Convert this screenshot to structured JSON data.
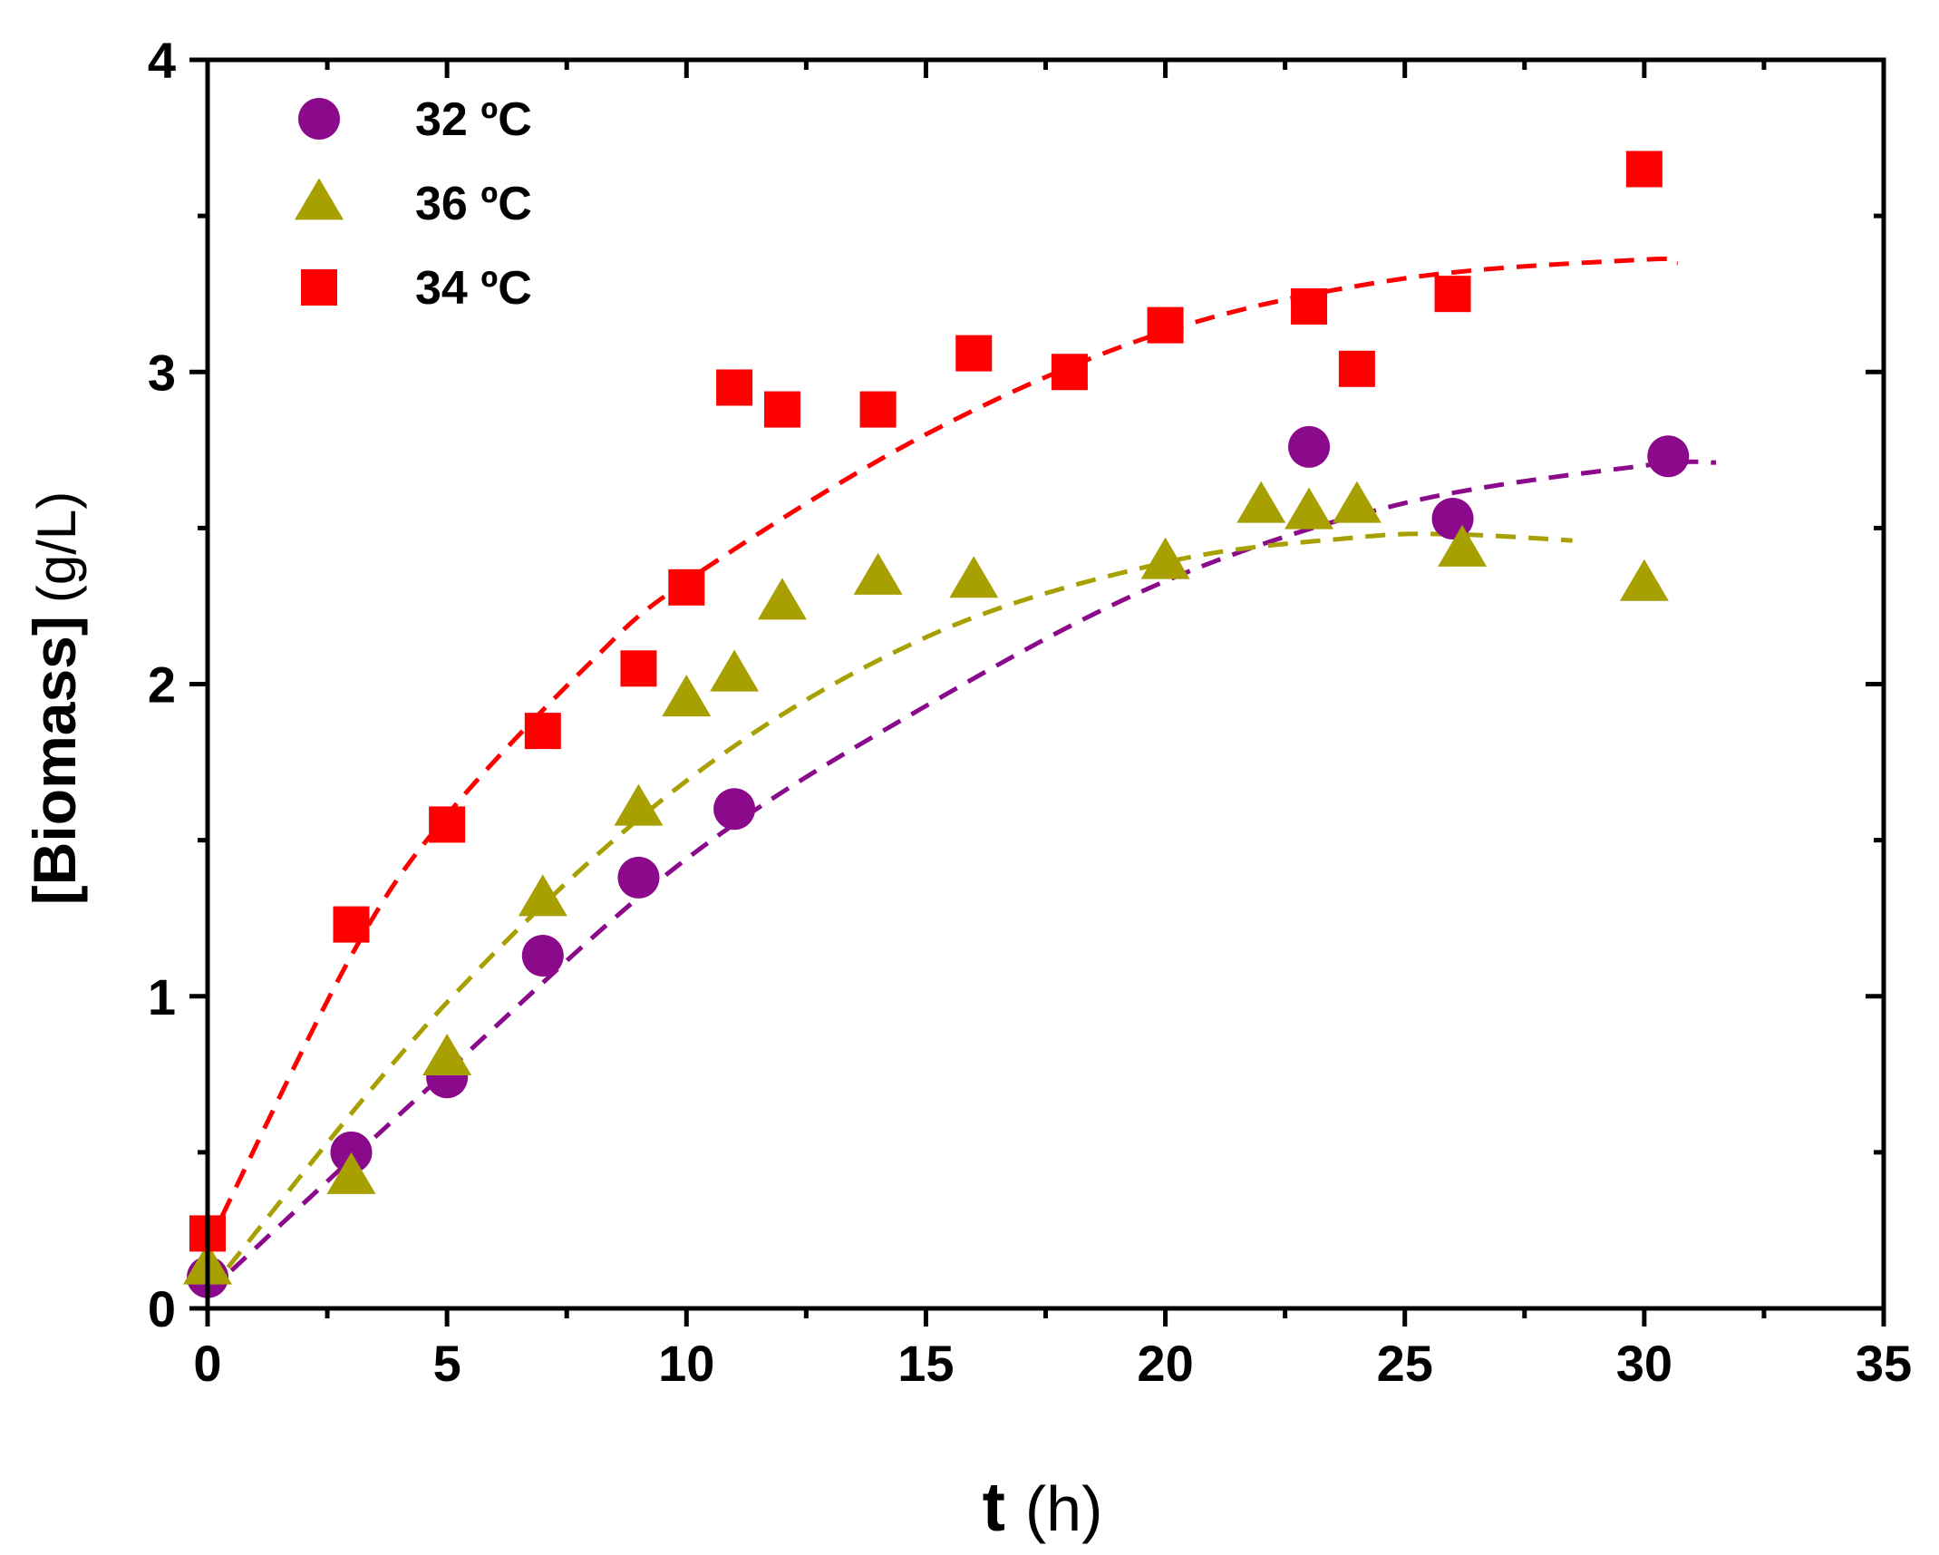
{
  "chart_data": {
    "type": "scatter",
    "title": "",
    "xlabel": {
      "main": "t",
      "unit": "(h)"
    },
    "ylabel": {
      "main": "[Biomass]",
      "unit": "(g/L)"
    },
    "xlim": [
      0,
      35
    ],
    "ylim": [
      0,
      4
    ],
    "xticks": [
      0,
      5,
      10,
      15,
      20,
      25,
      30,
      35
    ],
    "xticks_minor": [
      2.5,
      7.5,
      12.5,
      17.5,
      22.5,
      27.5,
      32.5
    ],
    "yticks": [
      0,
      1,
      2,
      3,
      4
    ],
    "yticks_minor": [
      0.5,
      1.5,
      2.5,
      3.5
    ],
    "grid": false,
    "legend_position": "top-left",
    "series": [
      {
        "name": "32 ºC",
        "marker": "circle",
        "color": "#8b0a8b",
        "points": [
          [
            0,
            0.1
          ],
          [
            3,
            0.5
          ],
          [
            5,
            0.74
          ],
          [
            7,
            1.13
          ],
          [
            9,
            1.38
          ],
          [
            11,
            1.6
          ],
          [
            23,
            2.76
          ],
          [
            26,
            2.53
          ],
          [
            30.5,
            2.73
          ]
        ],
        "fit": [
          [
            0,
            0.05
          ],
          [
            5,
            0.76
          ],
          [
            10,
            1.44
          ],
          [
            15,
            1.93
          ],
          [
            20,
            2.33
          ],
          [
            25,
            2.58
          ],
          [
            30,
            2.7
          ],
          [
            31.5,
            2.71
          ]
        ]
      },
      {
        "name": "36 ºC",
        "marker": "triangle",
        "color": "#a8a000",
        "points": [
          [
            0,
            0.13
          ],
          [
            3,
            0.42
          ],
          [
            5,
            0.8
          ],
          [
            7,
            1.31
          ],
          [
            9,
            1.6
          ],
          [
            10,
            1.95
          ],
          [
            11,
            2.03
          ],
          [
            12,
            2.26
          ],
          [
            14,
            2.34
          ],
          [
            16,
            2.33
          ],
          [
            20,
            2.39
          ],
          [
            22,
            2.57
          ],
          [
            23,
            2.55
          ],
          [
            24,
            2.57
          ],
          [
            26.2,
            2.43
          ],
          [
            30,
            2.32
          ]
        ],
        "fit": [
          [
            0,
            0.05
          ],
          [
            5,
            0.98
          ],
          [
            10,
            1.69
          ],
          [
            15,
            2.15
          ],
          [
            20,
            2.39
          ],
          [
            24,
            2.47
          ],
          [
            26,
            2.48
          ],
          [
            28.5,
            2.46
          ]
        ]
      },
      {
        "name": "34 ºC",
        "marker": "square",
        "color": "#ff0000",
        "points": [
          [
            0,
            0.24
          ],
          [
            3,
            1.23
          ],
          [
            5,
            1.55
          ],
          [
            7,
            1.85
          ],
          [
            9,
            2.05
          ],
          [
            10,
            2.31
          ],
          [
            11,
            2.95
          ],
          [
            12,
            2.88
          ],
          [
            14,
            2.88
          ],
          [
            16,
            3.06
          ],
          [
            18,
            3.0
          ],
          [
            20,
            3.15
          ],
          [
            23,
            3.21
          ],
          [
            24,
            3.01
          ],
          [
            26,
            3.25
          ],
          [
            30,
            3.65
          ]
        ],
        "fit": [
          [
            0,
            0.2
          ],
          [
            3,
            1.13
          ],
          [
            5,
            1.58
          ],
          [
            8,
            2.07
          ],
          [
            10,
            2.33
          ],
          [
            15,
            2.8
          ],
          [
            20,
            3.13
          ],
          [
            25,
            3.3
          ],
          [
            30,
            3.36
          ],
          [
            30.7,
            3.35
          ]
        ]
      }
    ]
  }
}
